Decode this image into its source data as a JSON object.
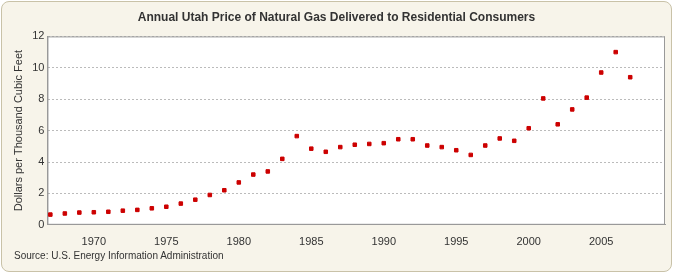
{
  "chart_data": {
    "type": "scatter",
    "title": "Annual Utah Price of Natural Gas Delivered to Residential Consumers",
    "y_label": "Dollars per Thousand Cubic Feet",
    "source": "Source: U.S. Energy Information Administration",
    "x": [
      1967,
      1968,
      1969,
      1970,
      1971,
      1972,
      1973,
      1974,
      1975,
      1976,
      1977,
      1978,
      1979,
      1980,
      1981,
      1982,
      1983,
      1984,
      1985,
      1986,
      1987,
      1988,
      1989,
      1990,
      1991,
      1992,
      1993,
      1994,
      1995,
      1996,
      1997,
      1998,
      1999,
      2000,
      2001,
      2002,
      2003,
      2004,
      2005,
      2006,
      2007
    ],
    "values": [
      0.65,
      0.72,
      0.78,
      0.8,
      0.83,
      0.9,
      0.95,
      1.05,
      1.15,
      1.35,
      1.6,
      1.9,
      2.2,
      2.7,
      3.2,
      3.4,
      4.2,
      5.65,
      4.85,
      4.65,
      4.95,
      5.1,
      5.15,
      5.2,
      5.45,
      5.45,
      5.05,
      4.95,
      4.75,
      4.45,
      5.05,
      5.5,
      5.35,
      6.15,
      8.05,
      6.4,
      7.35,
      8.1,
      9.7,
      11.0,
      9.4
    ],
    "color": "#cc0000",
    "marker": "square",
    "xlim": [
      1966.8,
      2009.4
    ],
    "xticks": [
      1970,
      1975,
      1980,
      1985,
      1990,
      1995,
      2000,
      2005
    ],
    "ylim": [
      0,
      12
    ],
    "yticks": [
      0,
      2,
      4,
      6,
      8,
      10,
      12
    ],
    "grid": true
  }
}
